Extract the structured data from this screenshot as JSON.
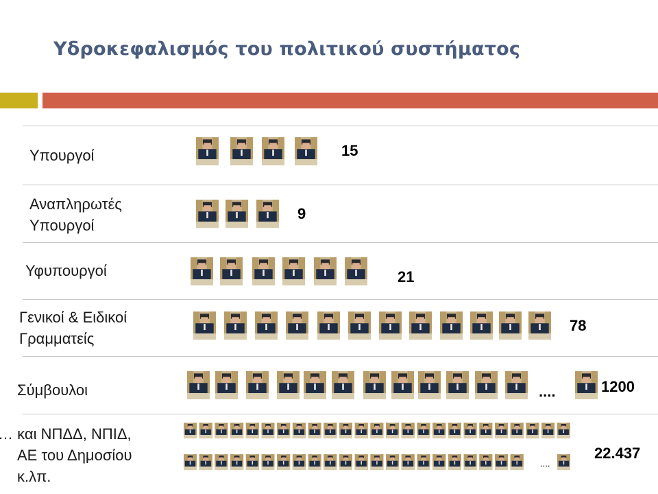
{
  "slide": {
    "title": "Υδροκεφαλισμός του πολιτικού συστήματος",
    "accent_colors": {
      "title": "#4a5d7e",
      "yellow_bar": "#c9b01e",
      "orange_bar": "#d06048"
    }
  },
  "chart_data": {
    "type": "pictogram",
    "icon": "minister-at-podium-photo",
    "categories": [
      {
        "label_lines": [
          "Υπουργοί"
        ],
        "value": "15"
      },
      {
        "label_lines": [
          "Αναπληρωτές",
          "Υπουργοί"
        ],
        "value": "9"
      },
      {
        "label_lines": [
          "Υφυπουργοί"
        ],
        "value": "21"
      },
      {
        "label_lines": [
          "Γενικοί & Ειδικοί",
          "Γραμματείς"
        ],
        "value": "78"
      },
      {
        "label_lines": [
          "Σύμβουλοι"
        ],
        "value": "1200",
        "ellipsis": "...."
      },
      {
        "label_lines": [
          "… και ΝΠΔΔ, ΝΠΙΔ,",
          "ΑΕ του Δημοσίου",
          "κ.λπ."
        ],
        "value": "22.437",
        "ellipsis": "...."
      }
    ]
  }
}
